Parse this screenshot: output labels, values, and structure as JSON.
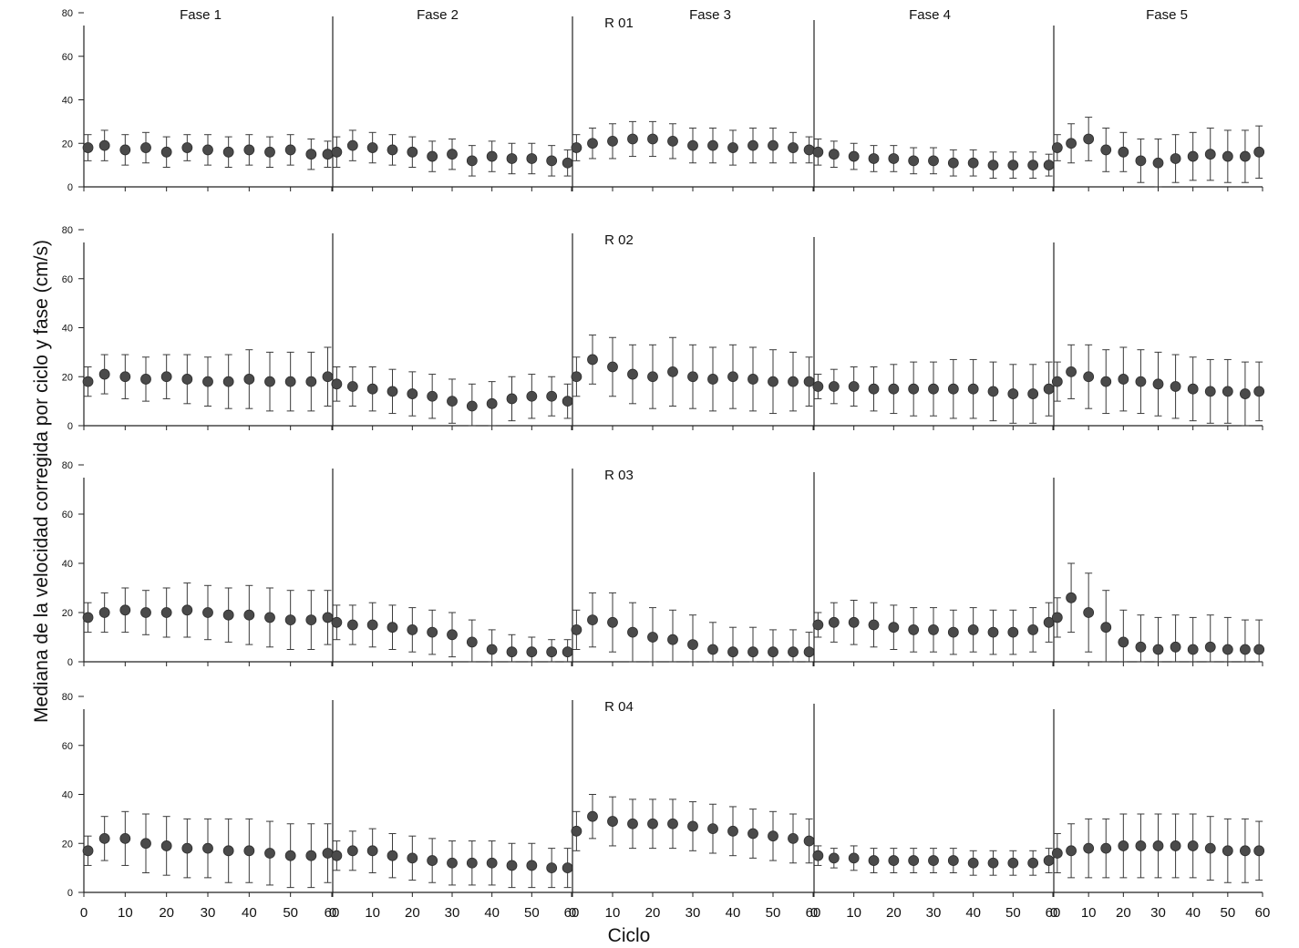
{
  "colors": {
    "marker": "#4a4a4a",
    "axis": "#222222",
    "errorbar": "#3a3a3a",
    "background": "#ffffff"
  },
  "chart_data": {
    "type": "scatter",
    "xlabel": "Ciclo",
    "ylabel": "Mediana de la velocidad corregida por ciclo y fase (cm/s)",
    "phases": [
      "Fase 1",
      "Fase 2",
      "Fase 3",
      "Fase 4",
      "Fase 5"
    ],
    "x_ticks": [
      "0",
      "10",
      "20",
      "30",
      "40",
      "50",
      "60"
    ],
    "y_ticks": [
      "0",
      "20",
      "40",
      "60",
      "80"
    ],
    "xlim": [
      0,
      60
    ],
    "ylim": [
      0,
      80
    ],
    "error_bars": "standard deviation (up/down)",
    "grid": false,
    "panels": [
      {
        "title": "R 01",
        "phases": [
          {
            "phase": "Fase 1",
            "x": [
              1,
              5,
              10,
              15,
              20,
              25,
              30,
              35,
              40,
              45,
              50,
              55,
              59
            ],
            "y": [
              18,
              19,
              17,
              18,
              16,
              18,
              17,
              16,
              17,
              16,
              17,
              15,
              15
            ],
            "err": [
              6,
              7,
              7,
              7,
              7,
              6,
              7,
              7,
              7,
              7,
              7,
              7,
              6
            ]
          },
          {
            "phase": "Fase 2",
            "x": [
              1,
              5,
              10,
              15,
              20,
              25,
              30,
              35,
              40,
              45,
              50,
              55,
              59
            ],
            "y": [
              16,
              19,
              18,
              17,
              16,
              14,
              15,
              12,
              14,
              13,
              13,
              12,
              11
            ],
            "err": [
              7,
              7,
              7,
              7,
              7,
              7,
              7,
              7,
              7,
              7,
              7,
              7,
              6
            ]
          },
          {
            "phase": "Fase 3",
            "x": [
              1,
              5,
              10,
              15,
              20,
              25,
              30,
              35,
              40,
              45,
              50,
              55,
              59
            ],
            "y": [
              18,
              20,
              21,
              22,
              22,
              21,
              19,
              19,
              18,
              19,
              19,
              18,
              17
            ],
            "err": [
              6,
              7,
              8,
              8,
              8,
              8,
              8,
              8,
              8,
              8,
              8,
              7,
              6
            ]
          },
          {
            "phase": "Fase 4",
            "x": [
              1,
              5,
              10,
              15,
              20,
              25,
              30,
              35,
              40,
              45,
              50,
              55,
              59
            ],
            "y": [
              16,
              15,
              14,
              13,
              13,
              12,
              12,
              11,
              11,
              10,
              10,
              10,
              10
            ],
            "err": [
              6,
              6,
              6,
              6,
              6,
              6,
              6,
              6,
              6,
              6,
              6,
              6,
              5
            ]
          },
          {
            "phase": "Fase 5",
            "x": [
              1,
              5,
              10,
              15,
              20,
              25,
              30,
              35,
              40,
              45,
              50,
              55,
              59
            ],
            "y": [
              18,
              20,
              22,
              17,
              16,
              12,
              11,
              13,
              14,
              15,
              14,
              14,
              16
            ],
            "err": [
              6,
              9,
              10,
              10,
              9,
              10,
              11,
              11,
              11,
              12,
              12,
              12,
              12
            ]
          }
        ]
      },
      {
        "title": "R 02",
        "phases": [
          {
            "phase": "Fase 1",
            "x": [
              1,
              5,
              10,
              15,
              20,
              25,
              30,
              35,
              40,
              45,
              50,
              55,
              59
            ],
            "y": [
              18,
              21,
              20,
              19,
              20,
              19,
              18,
              18,
              19,
              18,
              18,
              18,
              20
            ],
            "err": [
              6,
              8,
              9,
              9,
              9,
              10,
              10,
              11,
              12,
              12,
              12,
              12,
              12
            ]
          },
          {
            "phase": "Fase 2",
            "x": [
              1,
              5,
              10,
              15,
              20,
              25,
              30,
              35,
              40,
              45,
              50,
              55,
              59
            ],
            "y": [
              17,
              16,
              15,
              14,
              13,
              12,
              10,
              8,
              9,
              11,
              12,
              12,
              10
            ],
            "err": [
              7,
              8,
              9,
              9,
              9,
              9,
              9,
              9,
              9,
              9,
              9,
              8,
              7
            ]
          },
          {
            "phase": "Fase 3",
            "x": [
              1,
              5,
              10,
              15,
              20,
              25,
              30,
              35,
              40,
              45,
              50,
              55,
              59
            ],
            "y": [
              20,
              27,
              24,
              21,
              20,
              22,
              20,
              19,
              20,
              19,
              18,
              18,
              18
            ],
            "err": [
              8,
              10,
              12,
              12,
              13,
              14,
              13,
              13,
              13,
              13,
              13,
              12,
              10
            ]
          },
          {
            "phase": "Fase 4",
            "x": [
              1,
              5,
              10,
              15,
              20,
              25,
              30,
              35,
              40,
              45,
              50,
              55,
              59
            ],
            "y": [
              16,
              16,
              16,
              15,
              15,
              15,
              15,
              15,
              15,
              14,
              13,
              13,
              15
            ],
            "err": [
              5,
              7,
              8,
              9,
              10,
              11,
              11,
              12,
              12,
              12,
              12,
              12,
              11
            ]
          },
          {
            "phase": "Fase 5",
            "x": [
              1,
              5,
              10,
              15,
              20,
              25,
              30,
              35,
              40,
              45,
              50,
              55,
              59
            ],
            "y": [
              18,
              22,
              20,
              18,
              19,
              18,
              17,
              16,
              15,
              14,
              14,
              13,
              14
            ],
            "err": [
              8,
              11,
              13,
              13,
              13,
              13,
              13,
              13,
              13,
              13,
              13,
              13,
              12
            ]
          }
        ]
      },
      {
        "title": "R 03",
        "phases": [
          {
            "phase": "Fase 1",
            "x": [
              1,
              5,
              10,
              15,
              20,
              25,
              30,
              35,
              40,
              45,
              50,
              55,
              59
            ],
            "y": [
              18,
              20,
              21,
              20,
              20,
              21,
              20,
              19,
              19,
              18,
              17,
              17,
              18
            ],
            "err": [
              6,
              8,
              9,
              9,
              10,
              11,
              11,
              11,
              12,
              12,
              12,
              12,
              11
            ]
          },
          {
            "phase": "Fase 2",
            "x": [
              1,
              5,
              10,
              15,
              20,
              25,
              30,
              35,
              40,
              45,
              50,
              55,
              59
            ],
            "y": [
              16,
              15,
              15,
              14,
              13,
              12,
              11,
              8,
              5,
              4,
              4,
              4,
              4
            ],
            "err": [
              7,
              8,
              9,
              9,
              9,
              9,
              9,
              9,
              8,
              7,
              6,
              5,
              5
            ]
          },
          {
            "phase": "Fase 3",
            "x": [
              1,
              5,
              10,
              15,
              20,
              25,
              30,
              35,
              40,
              45,
              50,
              55,
              59
            ],
            "y": [
              13,
              17,
              16,
              12,
              10,
              9,
              7,
              5,
              4,
              4,
              4,
              4,
              4
            ],
            "err": [
              8,
              11,
              12,
              12,
              12,
              12,
              12,
              11,
              10,
              10,
              9,
              9,
              8
            ]
          },
          {
            "phase": "Fase 4",
            "x": [
              1,
              5,
              10,
              15,
              20,
              25,
              30,
              35,
              40,
              45,
              50,
              55,
              59
            ],
            "y": [
              15,
              16,
              16,
              15,
              14,
              13,
              13,
              12,
              13,
              12,
              12,
              13,
              16
            ],
            "err": [
              5,
              8,
              9,
              9,
              9,
              9,
              9,
              9,
              9,
              9,
              9,
              9,
              8
            ]
          },
          {
            "phase": "Fase 5",
            "x": [
              1,
              5,
              10,
              15,
              20,
              25,
              30,
              35,
              40,
              45,
              50,
              55,
              59
            ],
            "y": [
              18,
              26,
              20,
              14,
              8,
              6,
              5,
              6,
              5,
              6,
              5,
              5,
              5
            ],
            "err": [
              8,
              14,
              16,
              15,
              13,
              13,
              13,
              13,
              13,
              13,
              13,
              12,
              12
            ]
          }
        ]
      },
      {
        "title": "R 04",
        "phases": [
          {
            "phase": "Fase 1",
            "x": [
              1,
              5,
              10,
              15,
              20,
              25,
              30,
              35,
              40,
              45,
              50,
              55,
              59
            ],
            "y": [
              17,
              22,
              22,
              20,
              19,
              18,
              18,
              17,
              17,
              16,
              15,
              15,
              16
            ],
            "err": [
              6,
              9,
              11,
              12,
              12,
              12,
              12,
              13,
              13,
              13,
              13,
              13,
              12
            ]
          },
          {
            "phase": "Fase 2",
            "x": [
              1,
              5,
              10,
              15,
              20,
              25,
              30,
              35,
              40,
              45,
              50,
              55,
              59
            ],
            "y": [
              15,
              17,
              17,
              15,
              14,
              13,
              12,
              12,
              12,
              11,
              11,
              10,
              10
            ],
            "err": [
              6,
              8,
              9,
              9,
              9,
              9,
              9,
              9,
              9,
              9,
              9,
              8,
              8
            ]
          },
          {
            "phase": "Fase 3",
            "x": [
              1,
              5,
              10,
              15,
              20,
              25,
              30,
              35,
              40,
              45,
              50,
              55,
              59
            ],
            "y": [
              25,
              31,
              29,
              28,
              28,
              28,
              27,
              26,
              25,
              24,
              23,
              22,
              21
            ],
            "err": [
              8,
              9,
              10,
              10,
              10,
              10,
              10,
              10,
              10,
              10,
              10,
              10,
              9
            ]
          },
          {
            "phase": "Fase 4",
            "x": [
              1,
              5,
              10,
              15,
              20,
              25,
              30,
              35,
              40,
              45,
              50,
              55,
              59
            ],
            "y": [
              15,
              14,
              14,
              13,
              13,
              13,
              13,
              13,
              12,
              12,
              12,
              12,
              13
            ],
            "err": [
              4,
              4,
              5,
              5,
              5,
              5,
              5,
              5,
              5,
              5,
              5,
              5,
              5
            ]
          },
          {
            "phase": "Fase 5",
            "x": [
              1,
              5,
              10,
              15,
              20,
              25,
              30,
              35,
              40,
              45,
              50,
              55,
              59
            ],
            "y": [
              16,
              17,
              18,
              18,
              19,
              19,
              19,
              19,
              19,
              18,
              17,
              17,
              17
            ],
            "err": [
              8,
              11,
              12,
              12,
              13,
              13,
              13,
              13,
              13,
              13,
              13,
              13,
              12
            ]
          }
        ]
      }
    ]
  }
}
